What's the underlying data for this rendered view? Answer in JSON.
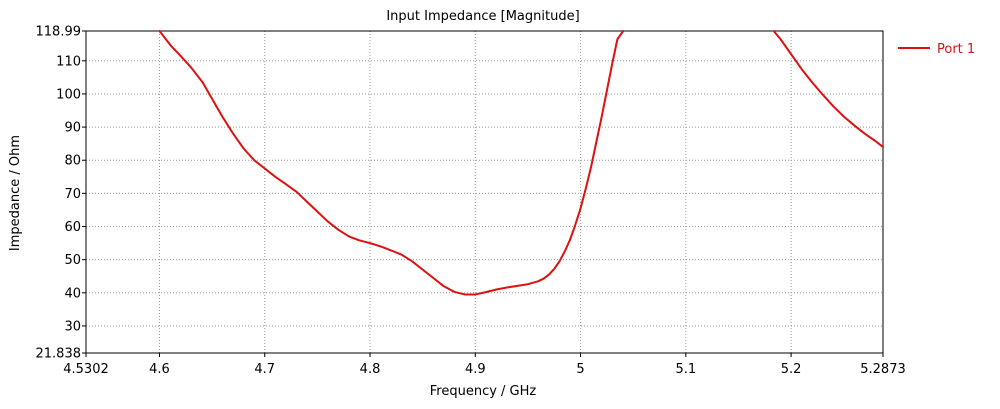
{
  "chart_data": {
    "type": "line",
    "title": "Input Impedance [Magnitude]",
    "xlabel": "Frequency / GHz",
    "ylabel": "Impedance / Ohm",
    "xlim": [
      4.5302,
      5.2873
    ],
    "ylim": [
      21.838,
      118.99
    ],
    "x_ticks": [
      4.5302,
      4.6,
      4.7,
      4.8,
      4.9,
      5.0,
      5.1,
      5.2,
      5.2873
    ],
    "x_tick_labels": [
      "4.5302",
      "4.6",
      "4.7",
      "4.8",
      "4.9",
      "5",
      "5.1",
      "5.2",
      "5.2873"
    ],
    "y_ticks": [
      21.838,
      30,
      40,
      50,
      60,
      70,
      80,
      90,
      100,
      110,
      118.99
    ],
    "y_tick_labels": [
      "21.838",
      "30",
      "40",
      "50",
      "60",
      "70",
      "80",
      "90",
      "100",
      "110",
      "118.99"
    ],
    "grid": true,
    "legend_position": "top-right",
    "series": [
      {
        "name": "Port 1",
        "color": "#e01010",
        "x": [
          4.6,
          4.611,
          4.62,
          4.63,
          4.641,
          4.65,
          4.66,
          4.67,
          4.68,
          4.69,
          4.7,
          4.71,
          4.72,
          4.73,
          4.74,
          4.75,
          4.76,
          4.77,
          4.78,
          4.79,
          4.8,
          4.81,
          4.82,
          4.83,
          4.84,
          4.85,
          4.86,
          4.87,
          4.88,
          4.89,
          4.9,
          4.91,
          4.92,
          4.93,
          4.94,
          4.95,
          4.96,
          4.965,
          4.97,
          4.975,
          4.98,
          4.985,
          4.99,
          4.995,
          5.0,
          5.005,
          5.01,
          5.015,
          5.02,
          5.025,
          5.03,
          5.035,
          5.0405,
          null,
          5.1835,
          5.19,
          5.2,
          5.21,
          5.22,
          5.23,
          5.24,
          5.25,
          5.26,
          5.27,
          5.28,
          5.2873
        ],
        "y": [
          118.99,
          114.5,
          111.5,
          108.0,
          103.5,
          98.5,
          93.0,
          88.0,
          83.5,
          80.0,
          77.5,
          75.0,
          72.8,
          70.5,
          67.5,
          64.5,
          61.5,
          59.0,
          57.0,
          55.8,
          55.0,
          54.0,
          52.8,
          51.5,
          49.5,
          47.0,
          44.5,
          42.0,
          40.3,
          39.5,
          39.5,
          40.2,
          41.0,
          41.6,
          42.1,
          42.6,
          43.5,
          44.3,
          45.5,
          47.2,
          49.5,
          52.5,
          56.0,
          60.5,
          65.5,
          71.5,
          78.0,
          85.5,
          93.0,
          101.0,
          109.0,
          116.5,
          118.99,
          null,
          118.99,
          116.5,
          112.0,
          107.5,
          103.5,
          99.8,
          96.3,
          93.2,
          90.5,
          88.0,
          85.8,
          84.0
        ]
      }
    ]
  }
}
